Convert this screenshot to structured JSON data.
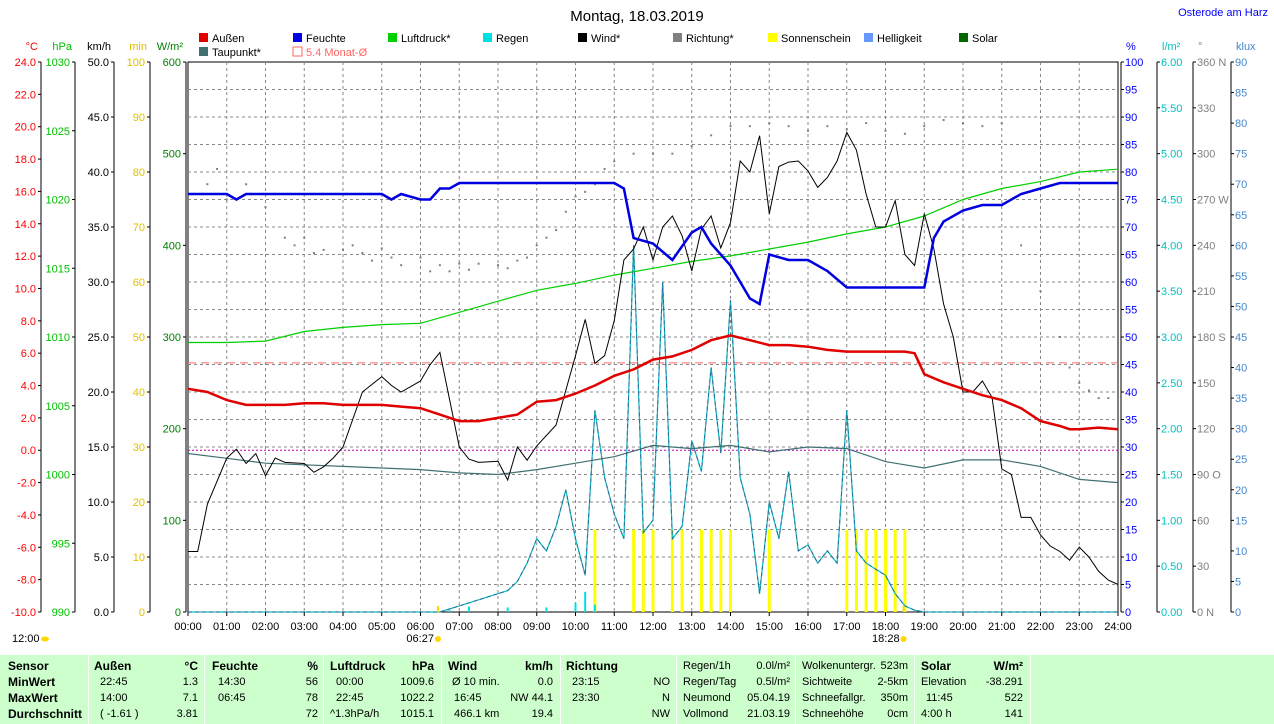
{
  "title": "Montag, 18.03.2019",
  "location": "Osterode am Harz",
  "legend": [
    {
      "label": "Außen",
      "color": "#e00000"
    },
    {
      "label": "Feuchte",
      "color": "#0000e0"
    },
    {
      "label": "Luftdruck*",
      "color": "#00d000"
    },
    {
      "label": "Regen",
      "color": "#00e0e0"
    },
    {
      "label": "Wind*",
      "color": "#000000"
    },
    {
      "label": "Richtung*",
      "color": "#808080"
    },
    {
      "label": "Sonnenschein",
      "color": "#ffff00"
    },
    {
      "label": "Helligkeit",
      "color": "#6699ff"
    },
    {
      "label": "Solar",
      "color": "#006600"
    },
    {
      "label": "Taupunkt*",
      "color": "#407070"
    },
    {
      "label": "5.4 Monat-Ø",
      "color": "#ff6666"
    }
  ],
  "time_markers": {
    "sunrise": "06:27",
    "sunset": "18:28",
    "noon": "12:00"
  },
  "stats": {
    "row_labels": [
      "Sensor",
      "MinWert",
      "MaxWert",
      "Durchschnitt"
    ],
    "aussen": {
      "header": "Außen",
      "unit": "°C",
      "min_time": "22:45",
      "min": "1.3",
      "max_time": "14:00",
      "max": "7.1",
      "avg_note": "( -1.61 )",
      "avg": "3.81"
    },
    "feuchte": {
      "header": "Feuchte",
      "unit": "%",
      "min_time": "14:30",
      "min": "56",
      "max_time": "06:45",
      "max": "78",
      "avg": "72"
    },
    "luftdruck": {
      "header": "Luftdruck",
      "unit": "hPa",
      "min_time": "00:00",
      "min": "1009.6",
      "max_time": "22:45",
      "max": "1022.2",
      "avg_note": "^1.3hPa/h",
      "avg": "1015.1"
    },
    "wind": {
      "header": "Wind",
      "unit": "km/h",
      "r1a": "Ø 10 min.",
      "r1b": "0.0",
      "r2a": "16:45",
      "r2b": "NW 44.1",
      "r3a": "466.1 km",
      "r3b": "19.4"
    },
    "richtung": {
      "header": "Richtung",
      "r1a": "23:15",
      "r1b": "NO",
      "r2a": "23:30",
      "r2b": "N",
      "r3b": "NW"
    },
    "regen": [
      [
        "Regen/1h",
        "0.0l/m²"
      ],
      [
        "Regen/Tag",
        "0.5l/m²"
      ],
      [
        "Neumond",
        "05.04.19"
      ],
      [
        "Vollmond",
        "21.03.19"
      ]
    ],
    "wolken": [
      [
        "Wolkenuntergr.",
        "523m"
      ],
      [
        "Sichtweite",
        "2-5km"
      ],
      [
        "Schneefallgr.",
        "350m"
      ],
      [
        "Schneehöhe",
        "0cm"
      ]
    ],
    "solar": {
      "header": "Solar",
      "unit": "W/m²",
      "r1a": "Elevation",
      "r1b": "-38.291",
      "r2a": "11:45",
      "r2b": "522",
      "r3a": "4:00 h",
      "r3b": "141"
    }
  },
  "chart_data": {
    "type": "line",
    "title": "Montag, 18.03.2019",
    "x_range": [
      "00:00",
      "24:00"
    ],
    "x_ticks": [
      "00:00",
      "01:00",
      "02:00",
      "03:00",
      "04:00",
      "05:00",
      "06:00",
      "07:00",
      "08:00",
      "09:00",
      "10:00",
      "11:00",
      "12:00",
      "13:00",
      "14:00",
      "15:00",
      "16:00",
      "17:00",
      "18:00",
      "19:00",
      "20:00",
      "21:00",
      "22:00",
      "23:00",
      "24:00"
    ],
    "grid": true,
    "axes": {
      "temp_c": {
        "label": "°C",
        "color": "#ff0000",
        "range": [
          -10,
          24
        ],
        "ticks": [
          "24.0",
          "22.0",
          "20.0",
          "18.0",
          "16.0",
          "14.0",
          "12.0",
          "10.0",
          "8.0",
          "6.0",
          "4.0",
          "2.0",
          "0.0",
          "-2.0",
          "-4.0",
          "-6.0",
          "-8.0",
          "-10.0"
        ]
      },
      "pressure_hpa": {
        "label": "hPa",
        "color": "#00c000",
        "range": [
          990,
          1030
        ],
        "ticks": [
          "1030",
          "1025",
          "1020",
          "1015",
          "1010",
          "1005",
          "1000",
          "995",
          "990"
        ]
      },
      "wind_kmh": {
        "label": "km/h",
        "color": "#000000",
        "range": [
          0,
          50
        ],
        "ticks": [
          "50.0",
          "45.0",
          "40.0",
          "35.0",
          "30.0",
          "25.0",
          "20.0",
          "15.0",
          "10.0",
          "5.0",
          "0.0"
        ]
      },
      "sun_min": {
        "label": "min",
        "color": "#e0c000",
        "range": [
          0,
          100
        ],
        "ticks": [
          "100",
          "90",
          "80",
          "70",
          "60",
          "50",
          "40",
          "30",
          "20",
          "10",
          "0"
        ]
      },
      "solar_wm2": {
        "label": "W/m²",
        "color": "#008000",
        "range": [
          0,
          600
        ],
        "ticks": [
          "600",
          "500",
          "400",
          "300",
          "200",
          "100",
          "0"
        ]
      },
      "humidity_pct": {
        "label": "%",
        "color": "#0000ff",
        "range": [
          0,
          100
        ],
        "ticks": [
          "100",
          "95",
          "90",
          "85",
          "80",
          "75",
          "70",
          "65",
          "60",
          "55",
          "50",
          "45",
          "40",
          "35",
          "30",
          "25",
          "20",
          "15",
          "10",
          "5",
          "0"
        ]
      },
      "rain_lm2": {
        "label": "l/m²",
        "color": "#00c0c0",
        "range": [
          0,
          6
        ],
        "ticks": [
          "6.00",
          "5.50",
          "5.00",
          "4.50",
          "4.00",
          "3.50",
          "3.00",
          "2.50",
          "2.00",
          "1.50",
          "1.00",
          "0.50",
          "0.00"
        ]
      },
      "direction_deg": {
        "label": "°",
        "color": "#808080",
        "range": [
          0,
          360
        ],
        "ticks": [
          "360 N",
          "330",
          "300",
          "270 W",
          "240",
          "210",
          "180 S",
          "150",
          "120",
          "90 O",
          "60",
          "30",
          "0 N"
        ]
      },
      "brightness_klux": {
        "label": "klux",
        "color": "#4488cc",
        "range": [
          0,
          90
        ],
        "ticks": [
          "90",
          "85",
          "80",
          "75",
          "70",
          "65",
          "60",
          "55",
          "50",
          "45",
          "40",
          "35",
          "30",
          "25",
          "20",
          "15",
          "10",
          "5",
          "0"
        ]
      }
    },
    "reference_lines": [
      {
        "name": "5.4 Monat-Ø",
        "axis": "temp_c",
        "y": 5.4,
        "color": "#ff6666"
      },
      {
        "axis": "temp_c",
        "y": 0.0,
        "color": "#c000c0"
      }
    ],
    "series": [
      {
        "name": "Außen",
        "axis": "temp_c",
        "color": "#e00000",
        "x": [
          0,
          0.5,
          1,
          1.5,
          2,
          2.5,
          3,
          3.5,
          4,
          4.5,
          5,
          5.5,
          6,
          6.5,
          7,
          7.5,
          8,
          8.5,
          9,
          9.5,
          10,
          10.5,
          11,
          11.5,
          12,
          12.5,
          13,
          13.5,
          14,
          14.5,
          15,
          15.5,
          16,
          16.5,
          17,
          17.5,
          18,
          18.5,
          18.75,
          19,
          19.5,
          20,
          20.5,
          21,
          21.5,
          22,
          22.5,
          22.75,
          23,
          23.5,
          24
        ],
        "y": [
          3.8,
          3.6,
          3.1,
          2.8,
          2.8,
          2.8,
          2.9,
          2.9,
          2.8,
          2.8,
          2.8,
          2.7,
          2.6,
          2.2,
          1.8,
          1.8,
          2.0,
          2.2,
          3.0,
          3.1,
          3.5,
          4.0,
          4.6,
          5.0,
          5.6,
          5.8,
          6.2,
          6.8,
          7.1,
          6.8,
          6.5,
          6.5,
          6.4,
          6.2,
          6.1,
          6.1,
          6.1,
          6.1,
          6.0,
          4.7,
          4.2,
          3.8,
          3.4,
          3.1,
          2.6,
          1.8,
          1.5,
          1.3,
          1.3,
          1.4,
          1.3
        ]
      },
      {
        "name": "Feuchte",
        "axis": "humidity_pct",
        "color": "#0000e0",
        "x": [
          0,
          0.5,
          1,
          1.25,
          1.5,
          2,
          2.5,
          3,
          3.5,
          4,
          4.5,
          5,
          5.25,
          5.5,
          6,
          6.25,
          6.5,
          6.75,
          7,
          8,
          9,
          10,
          11,
          11.25,
          11.5,
          12,
          12.5,
          13,
          13.25,
          13.5,
          14,
          14.5,
          14.75,
          15,
          15.5,
          16,
          16.5,
          17,
          17.5,
          18,
          18.5,
          19,
          19.25,
          19.5,
          20,
          20.5,
          21,
          21.5,
          22,
          22.5,
          23,
          23.5,
          24
        ],
        "y": [
          76,
          76,
          76,
          75,
          76,
          76,
          76,
          76,
          76,
          76,
          76,
          76,
          75,
          76,
          75,
          75,
          77,
          77,
          78,
          78,
          78,
          78,
          78,
          77,
          68,
          67,
          64,
          69,
          70,
          67,
          63,
          57,
          56,
          65,
          64,
          64,
          62,
          59,
          59,
          59,
          59,
          59,
          68,
          71,
          73,
          74,
          74,
          76,
          77,
          78,
          78,
          78,
          78
        ]
      },
      {
        "name": "Luftdruck*",
        "axis": "pressure_hpa",
        "color": "#00d000",
        "x": [
          0,
          1,
          2,
          3,
          4,
          5,
          6,
          7,
          8,
          9,
          10,
          11,
          12,
          13,
          14,
          15,
          16,
          17,
          18,
          19,
          20,
          21,
          22,
          23,
          24
        ],
        "y": [
          1009.6,
          1009.6,
          1009.7,
          1010.4,
          1010.7,
          1010.9,
          1011.0,
          1011.8,
          1012.6,
          1013.4,
          1013.9,
          1014.5,
          1015.0,
          1015.5,
          1015.9,
          1016.4,
          1016.9,
          1017.5,
          1018.0,
          1018.8,
          1020.0,
          1020.8,
          1021.3,
          1022.0,
          1022.2
        ]
      },
      {
        "name": "Wind*",
        "axis": "wind_kmh",
        "color": "#000000",
        "x": [
          0,
          0.25,
          0.5,
          1,
          1.25,
          1.5,
          1.75,
          2,
          2.25,
          2.5,
          3,
          3.25,
          3.5,
          3.75,
          4,
          4.5,
          5,
          5.25,
          5.5,
          6,
          6.25,
          6.5,
          7,
          7.25,
          7.5,
          8,
          8.25,
          8.5,
          8.75,
          9,
          9.5,
          10,
          10.25,
          10.5,
          10.75,
          11,
          11.25,
          11.5,
          11.75,
          12,
          12.25,
          12.5,
          12.75,
          13,
          13.25,
          13.5,
          13.75,
          14,
          14.25,
          14.5,
          14.75,
          15,
          15.25,
          15.5,
          15.75,
          16,
          16.25,
          16.5,
          16.75,
          17,
          17.25,
          17.5,
          17.75,
          18,
          18.25,
          18.5,
          18.75,
          19,
          19.25,
          19.5,
          19.75,
          20,
          20.25,
          20.5,
          20.75,
          21,
          21.25,
          21.5,
          21.75,
          22,
          22.25,
          22.5,
          22.75,
          23,
          23.25,
          23.5,
          23.75,
          24
        ],
        "y": [
          5.5,
          5.5,
          9.8,
          14.0,
          14.8,
          13.5,
          14.4,
          12.4,
          14.0,
          13.6,
          13.5,
          12.7,
          13.2,
          14.0,
          15.0,
          20.0,
          21.4,
          20.6,
          20.0,
          21.0,
          22.5,
          23.6,
          15.0,
          13.9,
          13.6,
          13.7,
          12.0,
          15.0,
          13.8,
          15.1,
          17.0,
          23.3,
          26.6,
          22.6,
          23.3,
          26.5,
          32.0,
          33.0,
          35.0,
          32.0,
          35.0,
          36.0,
          34.2,
          31.0,
          34.8,
          36.0,
          33.1,
          35.4,
          41.0,
          40.0,
          43.3,
          36.2,
          40.5,
          40.9,
          41.0,
          40.1,
          38.6,
          39.5,
          41.0,
          43.6,
          42.0,
          38.0,
          35.0,
          35.0,
          37.4,
          32.5,
          31.5,
          36.2,
          33.0,
          28.0,
          25.0,
          20.0,
          20.0,
          21.0,
          19.5,
          13.0,
          12.5,
          8.6,
          8.6,
          7.0,
          6.0,
          5.5,
          4.7,
          5.9,
          5.0,
          3.7,
          2.9,
          2.5
        ]
      },
      {
        "name": "Richtung*",
        "axis": "direction_deg",
        "color": "#808080",
        "x": [
          0.5,
          0.75,
          1,
          1.5,
          2,
          2.5,
          2.75,
          3,
          3.25,
          3.5,
          4,
          4.25,
          4.5,
          4.75,
          5,
          5.25,
          5.5,
          6,
          6.25,
          6.5,
          6.75,
          7,
          7.25,
          7.5,
          8,
          8.25,
          8.5,
          8.75,
          9,
          9.25,
          9.5,
          9.75,
          10,
          10.25,
          10.5,
          10.75,
          11,
          11.5,
          12,
          12.5,
          13,
          13.5,
          14,
          14.5,
          15,
          15.5,
          16,
          16.5,
          17,
          17.5,
          18,
          18.5,
          19,
          19.5,
          20,
          20.5,
          21,
          21.5,
          22,
          22.5,
          22.75,
          23,
          23.25,
          23.5,
          23.75
        ],
        "y": [
          280,
          290,
          270,
          280,
          265,
          245,
          240,
          245,
          235,
          237,
          237,
          240,
          235,
          230,
          238,
          232,
          227,
          232,
          223,
          227,
          223,
          228,
          224,
          228,
          227,
          225,
          230,
          232,
          240,
          245,
          250,
          262,
          272,
          275,
          280,
          290,
          295,
          300,
          300,
          300,
          305,
          312,
          318,
          318,
          320,
          318,
          315,
          318,
          316,
          320,
          315,
          313,
          318,
          322,
          320,
          318,
          320,
          240,
          210,
          180,
          160,
          150,
          145,
          140,
          140
        ]
      },
      {
        "name": "Helligkeit",
        "axis": "brightness_klux",
        "color": "#4488cc",
        "x": [
          0,
          6.5,
          6.75,
          7,
          7.5,
          8,
          8.25,
          8.5,
          8.75,
          9,
          9.25,
          9.5,
          9.75,
          10,
          10.25,
          10.5,
          10.75,
          11,
          11.25,
          11.5,
          11.75,
          12,
          12.25,
          12.5,
          12.75,
          13,
          13.25,
          13.5,
          13.75,
          14,
          14.25,
          14.5,
          14.75,
          15,
          15.25,
          15.5,
          15.75,
          16,
          16.25,
          16.5,
          16.75,
          17,
          17.25,
          17.5,
          17.75,
          18,
          18.25,
          18.5,
          18.75,
          19,
          24
        ],
        "y": [
          0,
          0,
          0.5,
          1,
          2,
          3,
          3.5,
          5,
          8,
          12,
          10,
          14,
          20,
          12,
          6,
          33,
          22,
          16,
          12,
          60,
          13,
          15,
          54,
          12,
          14,
          28,
          23,
          40,
          26,
          51,
          22,
          16,
          3,
          18,
          12,
          23,
          10,
          11,
          8,
          10,
          8,
          33,
          10,
          8,
          7,
          6,
          3,
          1,
          0.3,
          0,
          0
        ]
      },
      {
        "name": "Regen",
        "axis": "rain_lm2",
        "color": "#00e0e0",
        "x": [
          6.75,
          7.25,
          8.25,
          9.25,
          10.0,
          10.25,
          10.5
        ],
        "y": [
          0.02,
          0.06,
          0.05,
          0.05,
          0.1,
          0.22,
          0.08
        ]
      },
      {
        "name": "Taupunkt*",
        "axis": "temp_c",
        "color": "#407070",
        "x": [
          0,
          1,
          2,
          3,
          4,
          5,
          6,
          7,
          8,
          9,
          10,
          11,
          12,
          13,
          14,
          15,
          16,
          17,
          18,
          19,
          20,
          21,
          22,
          23,
          24
        ],
        "y": [
          -0.2,
          -0.5,
          -0.8,
          -0.9,
          -1.0,
          -1.1,
          -1.2,
          -1.4,
          -1.5,
          -1.2,
          -0.8,
          -0.4,
          0.3,
          0.1,
          0.3,
          -0.1,
          0.2,
          0.1,
          -0.7,
          -1.1,
          -0.6,
          -0.6,
          -1.0,
          -1.8,
          -2.0
        ]
      },
      {
        "name": "Sonnenschein",
        "axis": "sun_min",
        "color": "#ffff00",
        "x": [
          10.5,
          11.5,
          11.75,
          12.0,
          12.5,
          12.75,
          13.25,
          13.5,
          13.75,
          14.0,
          15.0,
          17.0,
          17.25,
          17.5,
          17.75,
          18.0,
          18.25,
          18.5
        ],
        "y": [
          15,
          15,
          15,
          15,
          15,
          15,
          15,
          15,
          15,
          15,
          15,
          15,
          15,
          15,
          15,
          15,
          15,
          15
        ]
      }
    ]
  }
}
